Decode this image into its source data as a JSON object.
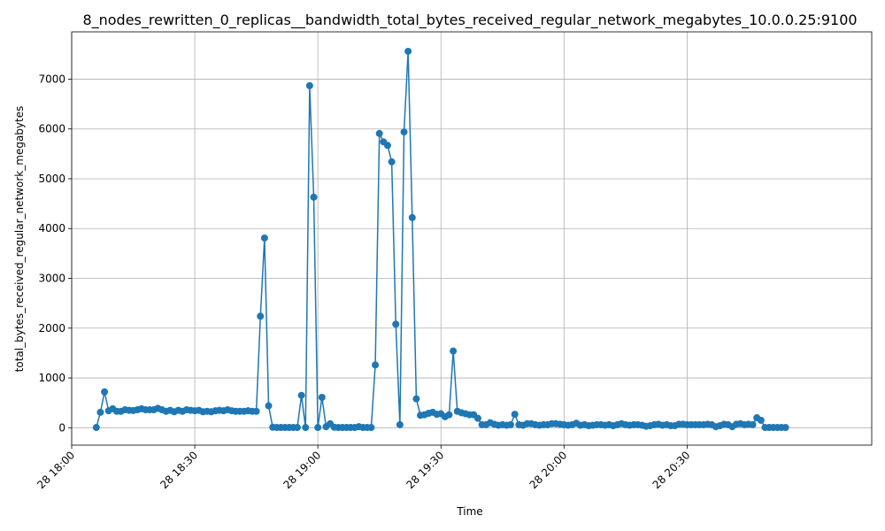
{
  "chart_data": {
    "type": "line",
    "title": "8_nodes_rewritten_0_replicas__bandwidth_total_bytes_received_regular_network_megabytes_10.0.0.25:9100",
    "xlabel": "Time",
    "ylabel": "total_bytes_received_regular_network_megabytes",
    "x_start_minute": 1086,
    "x_step_minutes": 1,
    "xlim_minutes": [
      1080,
      1275
    ],
    "ylim": [
      -350,
      7950
    ],
    "grid": true,
    "legend": "none",
    "marker": "circle",
    "color": "#1f77b4",
    "x_ticks": [
      {
        "minute": 1080,
        "label": "28 18:00"
      },
      {
        "minute": 1110,
        "label": "28 18:30"
      },
      {
        "minute": 1140,
        "label": "28 19:00"
      },
      {
        "minute": 1170,
        "label": "28 19:30"
      },
      {
        "minute": 1200,
        "label": "28 20:00"
      },
      {
        "minute": 1230,
        "label": "28 20:30"
      }
    ],
    "y_ticks": [
      0,
      1000,
      2000,
      3000,
      4000,
      5000,
      6000,
      7000
    ],
    "values": [
      5,
      310,
      720,
      340,
      380,
      330,
      330,
      360,
      350,
      345,
      360,
      380,
      360,
      360,
      360,
      390,
      360,
      330,
      350,
      320,
      350,
      330,
      360,
      350,
      340,
      350,
      320,
      330,
      320,
      340,
      350,
      340,
      360,
      340,
      330,
      330,
      330,
      340,
      330,
      330,
      2240,
      3810,
      440,
      10,
      5,
      5,
      5,
      5,
      5,
      5,
      650,
      5,
      6870,
      4630,
      5,
      610,
      20,
      80,
      10,
      5,
      5,
      5,
      5,
      5,
      20,
      5,
      5,
      5,
      1260,
      5910,
      5740,
      5670,
      5340,
      2080,
      60,
      5940,
      7560,
      4220,
      580,
      250,
      260,
      290,
      310,
      270,
      280,
      220,
      260,
      1540,
      330,
      300,
      280,
      260,
      260,
      190,
      60,
      60,
      100,
      70,
      50,
      60,
      50,
      60,
      270,
      60,
      50,
      80,
      80,
      60,
      50,
      60,
      60,
      80,
      80,
      70,
      60,
      50,
      60,
      90,
      50,
      60,
      40,
      50,
      60,
      60,
      50,
      60,
      40,
      60,
      80,
      60,
      50,
      60,
      60,
      50,
      30,
      40,
      60,
      70,
      50,
      60,
      40,
      40,
      70,
      70,
      60,
      60,
      60,
      60,
      60,
      70,
      60,
      20,
      40,
      70,
      60,
      20,
      70,
      80,
      60,
      70,
      60,
      200,
      150,
      5,
      5,
      5,
      5,
      5,
      5
    ]
  }
}
